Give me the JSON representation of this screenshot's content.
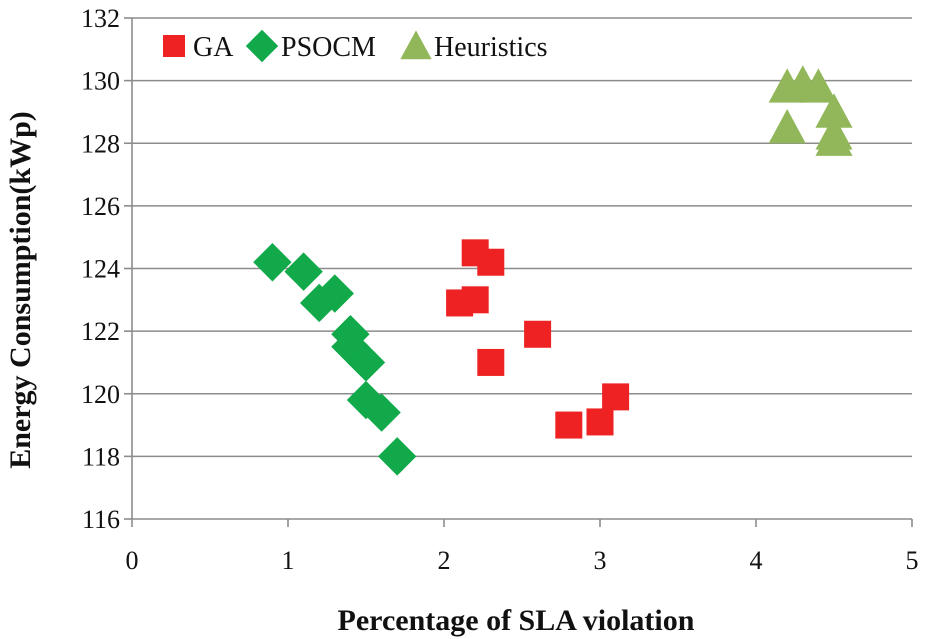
{
  "chart_data": {
    "type": "scatter",
    "title": "",
    "xlabel": "Percentage of SLA violation",
    "ylabel": "Energy Consumption(kWp)",
    "xlim": [
      0,
      5
    ],
    "ylim": [
      116,
      132
    ],
    "xticks": [
      0,
      1,
      2,
      3,
      4,
      5
    ],
    "yticks": [
      116,
      118,
      120,
      122,
      124,
      126,
      128,
      130,
      132
    ],
    "grid": "horizontal",
    "legend": "top-left",
    "series": [
      {
        "name": "GA",
        "marker": "square",
        "color": "#ee2222",
        "points": [
          {
            "x": 2.1,
            "y": 122.9
          },
          {
            "x": 2.2,
            "y": 123.0
          },
          {
            "x": 2.2,
            "y": 124.5
          },
          {
            "x": 2.3,
            "y": 124.2
          },
          {
            "x": 2.3,
            "y": 121.0
          },
          {
            "x": 2.6,
            "y": 121.9
          },
          {
            "x": 2.8,
            "y": 119.0
          },
          {
            "x": 3.0,
            "y": 119.1
          },
          {
            "x": 3.1,
            "y": 119.9
          }
        ]
      },
      {
        "name": "PSOCM",
        "marker": "diamond",
        "color": "#11a94a",
        "points": [
          {
            "x": 0.9,
            "y": 124.2
          },
          {
            "x": 1.1,
            "y": 123.9
          },
          {
            "x": 1.2,
            "y": 122.9
          },
          {
            "x": 1.3,
            "y": 123.2
          },
          {
            "x": 1.4,
            "y": 121.9
          },
          {
            "x": 1.4,
            "y": 121.5
          },
          {
            "x": 1.5,
            "y": 121.0
          },
          {
            "x": 1.5,
            "y": 119.8
          },
          {
            "x": 1.6,
            "y": 119.4
          },
          {
            "x": 1.7,
            "y": 118.0
          }
        ]
      },
      {
        "name": "Heuristics",
        "marker": "triangle",
        "color": "#92b75a",
        "points": [
          {
            "x": 4.2,
            "y": 129.8
          },
          {
            "x": 4.3,
            "y": 129.9
          },
          {
            "x": 4.4,
            "y": 129.8
          },
          {
            "x": 4.5,
            "y": 129.0
          },
          {
            "x": 4.2,
            "y": 128.5
          },
          {
            "x": 4.5,
            "y": 128.3
          },
          {
            "x": 4.5,
            "y": 128.1
          }
        ]
      }
    ]
  }
}
